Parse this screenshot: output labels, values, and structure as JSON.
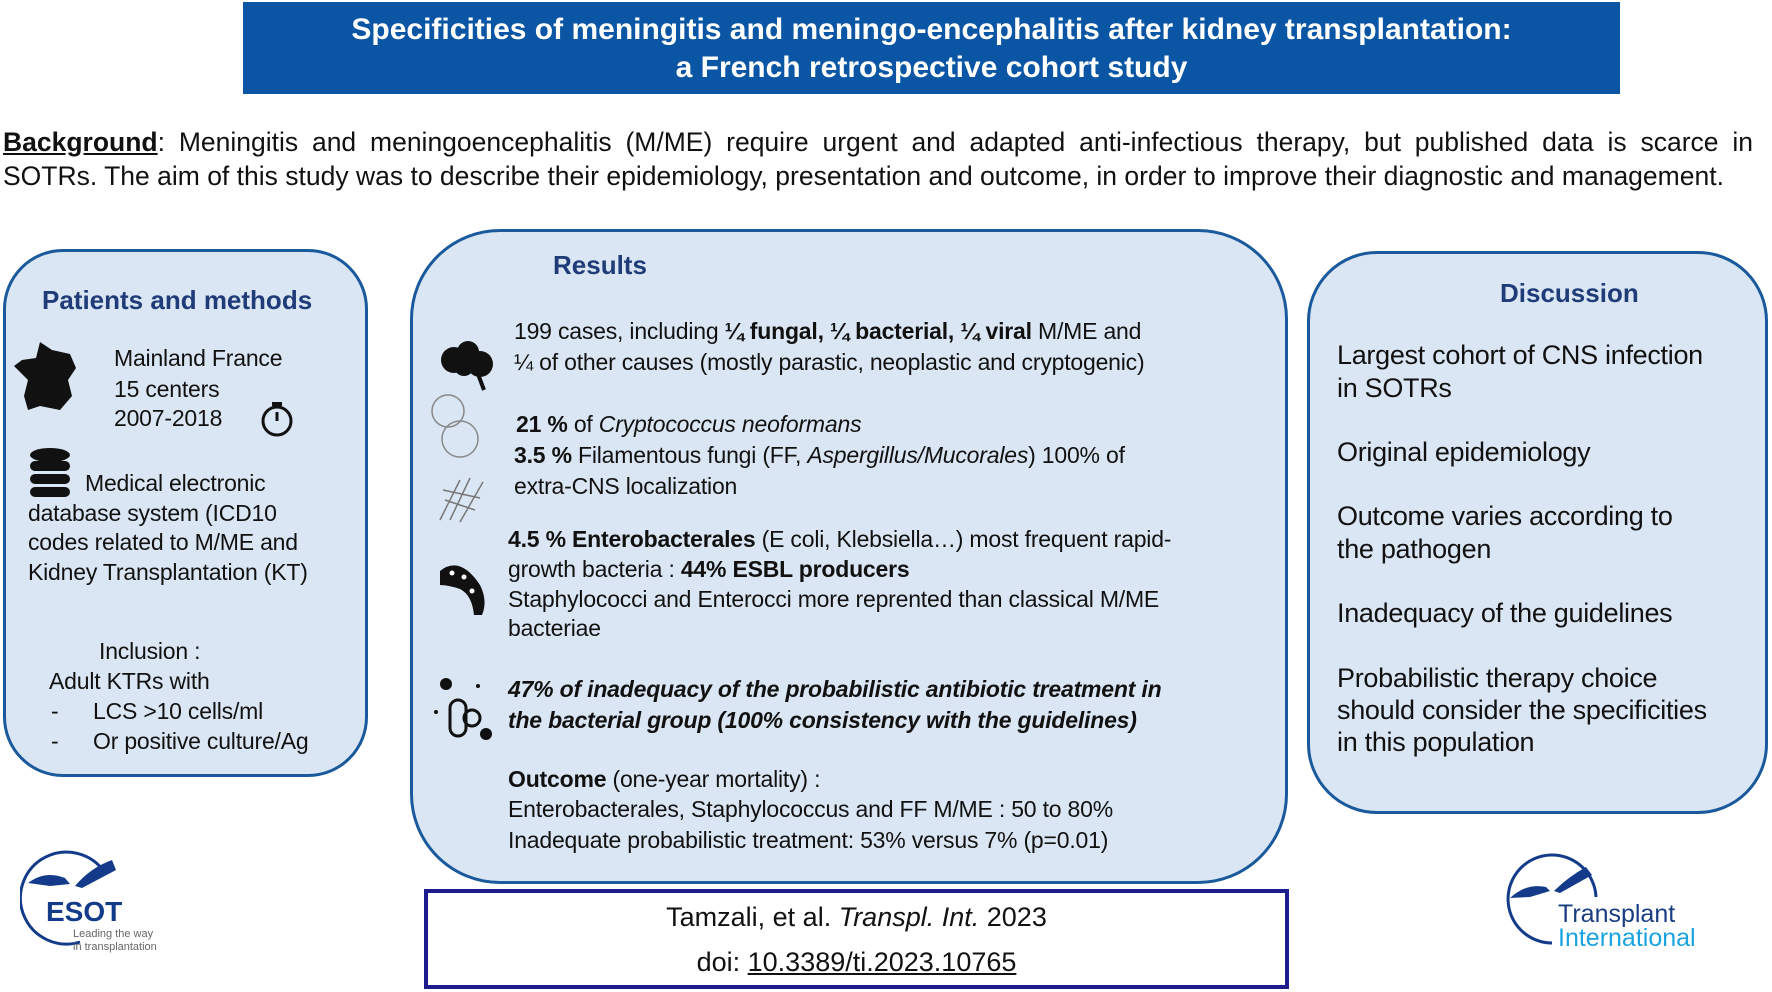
{
  "title": {
    "line1": "Specificities of meningitis and meningo-encephalitis after kidney transplantation:",
    "line2": "a French retrospective cohort study"
  },
  "background": {
    "label": "Background",
    "line1": ": Meningitis and meningoencephalitis (M/ME) require urgent and adapted anti-infectious therapy, but published data is scarce in",
    "line2": "SOTRs. The aim of this study was to describe their epidemiology, presentation and outcome, in order to improve their diagnostic and management."
  },
  "methods": {
    "title": "Patients and methods",
    "location": "Mainland  France",
    "centers": "15 centers",
    "years": "2007-2018",
    "db1": "Medical electronic",
    "db2": "database  system  (ICD10",
    "db3": "codes related to M/ME  and",
    "db4": "Kidney Transplantation  (KT)",
    "inclusion": "Inclusion  :",
    "adult": "Adult  KTRs  with",
    "crit1": "LCS >10 cells/ml",
    "crit2": "Or positive  culture/Ag",
    "dash": "-"
  },
  "results": {
    "title": "Results",
    "p1a": "199 cases, including ",
    "q": "¼",
    "fungal": " fungal, ",
    "bacterial": " bacterial, ",
    "viral": " viral",
    "p1b": " M/ME and",
    "p1c": "¼ of other causes (mostly  parastic, neoplastic  and cryptogenic)",
    "crypto_pct": "21 %",
    "crypto_of": " of ",
    "crypto_name": "Cryptococcus neoformans",
    "ff_pct": "3.5 %",
    "ff_a": " Filamentous  fungi (FF, ",
    "ff_names": "Aspergillus/Mucorales",
    "ff_b": ")  100%  of",
    "ff_c": "extra-CNS  localization",
    "ent_a": "4.5 % Enterobacterales",
    "ent_b": "  (E coli, Klebsiella…)  most  frequent  rapid-",
    "ent_c": "growth  bacteria  : ",
    "esbl": "44% ESBL producers",
    "ent_d": "Staphylococci  and  Enterocci  more  reprented  than  classical  M/ME",
    "ent_e": "bacteriae",
    "abx1": "47% of inadequacy  of  the  probabilistic  antibiotic  treatment  in",
    "abx2": "the  bacterial  group  (100% consistency  with  the guidelines)",
    "outcome": "Outcome",
    "outcome_sub": "   (one-year mortality)  :",
    "out1": "Enterobacterales,  Staphylococcus  and  FF M/ME   : 50 to 80%",
    "out2": "Inadequate  probabilistic  treatment:  53% versus  7% (p=0.01)"
  },
  "discussion": {
    "title": "Discussion",
    "items": [
      [
        "Largest cohort of CNS infection",
        "in SOTRs"
      ],
      [
        "Original epidemiology"
      ],
      [
        "Outcome varies according to",
        "the pathogen"
      ],
      [
        "Inadequacy of the guidelines"
      ],
      [
        "Probabilistic therapy choice",
        "should consider the specificities",
        "in  this population"
      ]
    ]
  },
  "citation": {
    "authors": "Tamzali, et al. ",
    "journal": "Transpl. Int.",
    "year": " 2023",
    "doi_label": "doi: ",
    "doi": "10.3389/ti.2023.10765"
  },
  "logos": {
    "esot": "ESOT",
    "esot_tag1": "Leading the way",
    "esot_tag2": "in transplantation",
    "ti1": "Transplant",
    "ti2": "International"
  },
  "colors": {
    "title_bg": "#0b56a4",
    "box_bg": "#dae6f3",
    "box_border": "#1a5a9c",
    "heading": "#1f3c78"
  }
}
